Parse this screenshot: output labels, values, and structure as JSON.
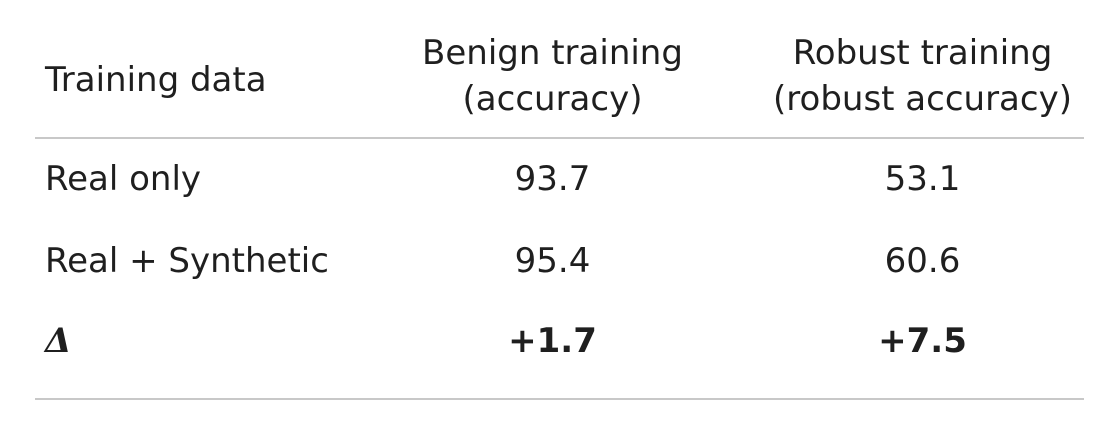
{
  "table": {
    "headers": {
      "col0": "Training data",
      "col1_line1": "Benign training",
      "col1_line2": "(accuracy)",
      "col2_line1": "Robust training",
      "col2_line2": "(robust accuracy)"
    },
    "rows": [
      {
        "label": "Real  only",
        "benign": "93.7",
        "robust": "53.1"
      },
      {
        "label": "Real + Synthetic",
        "benign": "95.4",
        "robust": "60.6"
      },
      {
        "label": "Δ",
        "benign": "+1.7",
        "robust": "+7.5"
      }
    ]
  }
}
